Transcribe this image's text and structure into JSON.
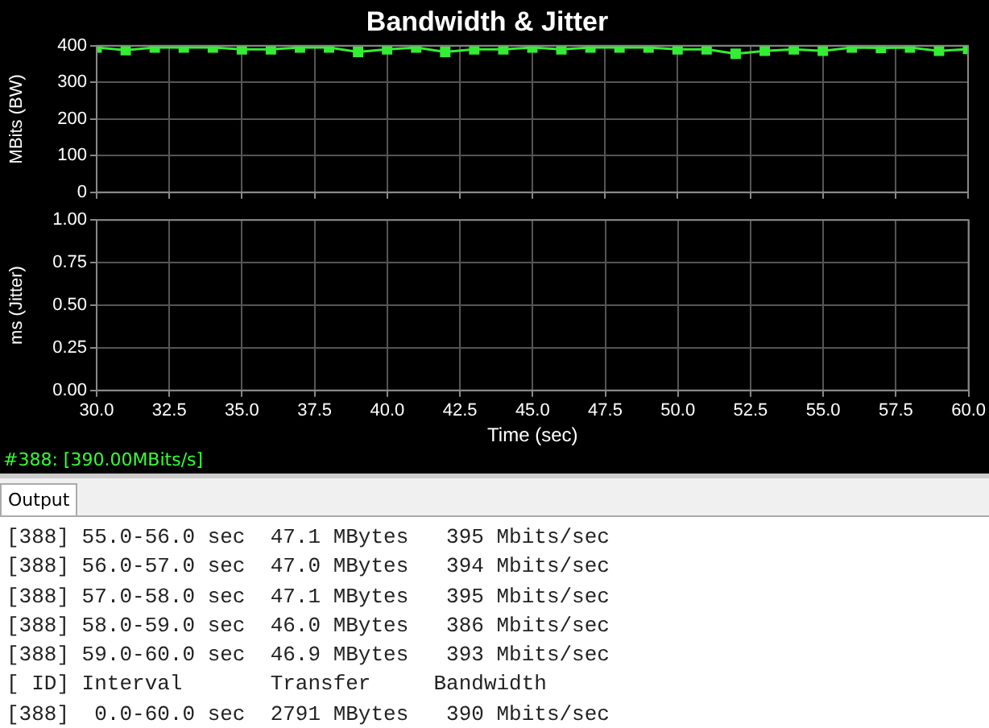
{
  "chart_data": [
    {
      "type": "line",
      "title": "Bandwidth & Jitter",
      "ylabel": "MBits (BW)",
      "x": [
        30,
        31,
        32,
        33,
        34,
        35,
        36,
        37,
        38,
        39,
        40,
        41,
        42,
        43,
        44,
        45,
        46,
        47,
        48,
        49,
        50,
        51,
        52,
        53,
        54,
        55,
        56,
        57,
        58,
        59,
        60
      ],
      "series": [
        {
          "color": "#33ee33",
          "values": [
            395,
            388,
            395,
            395,
            395,
            390,
            390,
            395,
            395,
            383,
            390,
            395,
            383,
            390,
            390,
            395,
            390,
            395,
            395,
            395,
            390,
            390,
            378,
            386,
            390,
            386,
            395,
            394,
            395,
            386,
            391
          ]
        }
      ],
      "xlim": [
        30,
        60
      ],
      "xticks": [
        30.0,
        32.5,
        35.0,
        37.5,
        40.0,
        42.5,
        45.0,
        47.5,
        50.0,
        52.5,
        55.0,
        57.5,
        60.0
      ],
      "ylim": [
        0,
        400
      ],
      "yticks": [
        0,
        100,
        200,
        300,
        400
      ],
      "tick_labels": "y",
      "grid": true,
      "marker": "square",
      "line_style": "solid"
    },
    {
      "type": "line",
      "xlabel": "Time (sec)",
      "ylabel": "ms (Jitter)",
      "xlim": [
        30,
        60
      ],
      "xticks": [
        {
          "value": 30,
          "label": "30.0"
        },
        {
          "value": 32.5,
          "label": "32.5"
        },
        {
          "value": 35,
          "label": "35.0"
        },
        {
          "value": 37.5,
          "label": "37.5"
        },
        {
          "value": 40,
          "label": "40.0"
        },
        {
          "value": 42.5,
          "label": "42.5"
        },
        {
          "value": 45,
          "label": "45.0"
        },
        {
          "value": 47.5,
          "label": "47.5"
        },
        {
          "value": 50,
          "label": "50.0"
        },
        {
          "value": 52.5,
          "label": "52.5"
        },
        {
          "value": 55,
          "label": "55.0"
        },
        {
          "value": 57.5,
          "label": "57.5"
        },
        {
          "value": 60,
          "label": "60.0"
        }
      ],
      "ylim": [
        0,
        1
      ],
      "yticks": [
        {
          "value": 0,
          "label": "0.00"
        },
        {
          "value": 0.25,
          "label": "0.25"
        },
        {
          "value": 0.5,
          "label": "0.50"
        },
        {
          "value": 0.75,
          "label": "0.75"
        },
        {
          "value": 1,
          "label": "1.00"
        }
      ],
      "grid": true,
      "annotations": [
        "#388: [390.00MBits/s]",
        "Output",
        "[388] 55.0-56.0 sec  47.1 MBytes   395 Mbits/sec",
        "[388] 56.0-57.0 sec  47.0 MBytes   394 Mbits/sec",
        "[388] 57.0-58.0 sec  47.1 MBytes   395 Mbits/sec",
        "[388] 58.0-59.0 sec  46.0 MBytes   386 Mbits/sec",
        "[388] 59.0-60.0 sec  46.9 MBytes   393 Mbits/sec",
        "[ ID] Interval       Transfer     Bandwidth",
        "[388]  0.0-60.0 sec  2791 MBytes   390 Mbits/sec"
      ]
    }
  ]
}
